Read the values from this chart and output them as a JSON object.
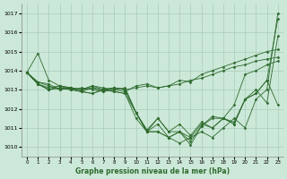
{
  "title": "Graphe pression niveau de la mer (hPa)",
  "bg_color": "#cce8d8",
  "grid_color": "#aaccbc",
  "line_color": "#2d6a2d",
  "marker_color": "#2d6a2d",
  "xlim": [
    -0.5,
    23.5
  ],
  "ylim": [
    1009.5,
    1017.5
  ],
  "yticks": [
    1010,
    1011,
    1012,
    1013,
    1014,
    1015,
    1016,
    1017
  ],
  "xticks": [
    0,
    1,
    2,
    3,
    4,
    5,
    6,
    7,
    8,
    9,
    10,
    11,
    12,
    13,
    14,
    15,
    16,
    17,
    18,
    19,
    20,
    21,
    22,
    23
  ],
  "series": [
    [
      1013.9,
      1014.9,
      1013.5,
      1013.2,
      1013.1,
      1013.0,
      1013.1,
      1013.0,
      1013.1,
      1013.0,
      1013.1,
      1013.2,
      1013.1,
      1013.2,
      1013.3,
      1013.5,
      1013.6,
      1013.8,
      1014.0,
      1014.2,
      1014.3,
      1014.5,
      1014.6,
      1014.7
    ],
    [
      1013.9,
      1013.4,
      1013.3,
      1013.0,
      1013.1,
      1013.0,
      1013.2,
      1013.1,
      1013.0,
      1012.9,
      1013.2,
      1013.3,
      1013.1,
      1013.2,
      1013.5,
      1013.4,
      1013.8,
      1014.0,
      1014.2,
      1014.4,
      1014.6,
      1014.8,
      1015.0,
      1015.1
    ],
    [
      1013.9,
      1013.3,
      1013.1,
      1013.2,
      1013.0,
      1012.9,
      1013.1,
      1012.9,
      1013.0,
      1013.1,
      1011.8,
      1010.9,
      1011.5,
      1010.8,
      1011.2,
      1010.6,
      1011.3,
      1011.0,
      1011.5,
      1012.2,
      1013.8,
      1014.0,
      1014.3,
      1014.5
    ],
    [
      1013.9,
      1013.3,
      1013.0,
      1013.1,
      1013.0,
      1012.9,
      1012.8,
      1013.0,
      1012.9,
      1012.8,
      1011.5,
      1010.8,
      1011.2,
      1010.5,
      1010.8,
      1010.3,
      1011.1,
      1011.5,
      1011.5,
      1011.2,
      1012.5,
      1012.8,
      1013.5,
      1012.2
    ],
    [
      1013.9,
      1013.3,
      1013.0,
      1013.2,
      1013.1,
      1012.9,
      1012.8,
      1013.0,
      1012.9,
      1012.8,
      1011.8,
      1010.8,
      1010.8,
      1010.5,
      1010.8,
      1010.1,
      1011.1,
      1011.6,
      1011.5,
      1011.2,
      1012.5,
      1013.0,
      1012.3,
      1015.8
    ],
    [
      1013.9,
      1013.4,
      1013.2,
      1013.0,
      1013.1,
      1013.0,
      1013.2,
      1013.0,
      1013.1,
      1013.0,
      1011.8,
      1010.8,
      1011.5,
      1010.8,
      1010.8,
      1010.5,
      1011.2,
      1011.0,
      1011.5,
      1011.3,
      1012.5,
      1012.8,
      1013.5,
      1016.7
    ],
    [
      1013.9,
      1013.3,
      1013.0,
      1013.1,
      1013.0,
      1013.1,
      1013.0,
      1012.9,
      1013.1,
      1013.0,
      1011.8,
      1010.8,
      1010.8,
      1010.5,
      1010.2,
      1010.5,
      1010.8,
      1010.5,
      1011.0,
      1011.5,
      1011.0,
      1012.5,
      1013.0,
      1017.0
    ]
  ]
}
